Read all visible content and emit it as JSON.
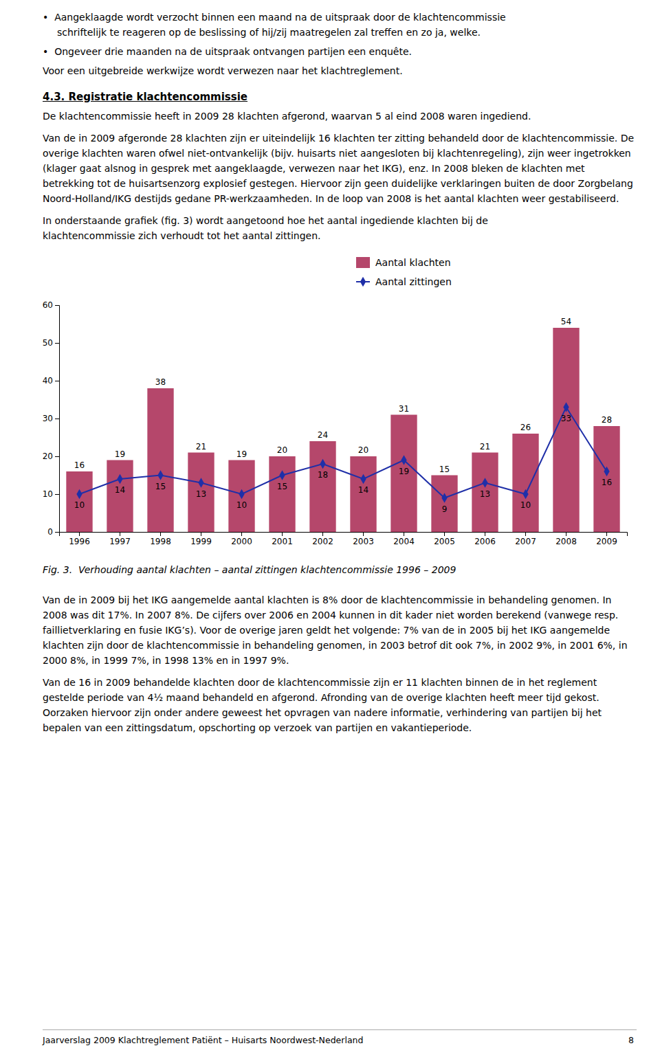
{
  "page": {
    "bullets": [
      [
        "•  Aangeklaagde wordt verzocht binnen een maand na de uitspraak door de klachtencommissie",
        "schriftelijk te reageren op de beslissing of hij/zij maatregelen zal treffen en zo ja, welke."
      ],
      [
        "•  Ongeveer drie maanden na de uitspraak ontvangen partijen een enquête."
      ]
    ],
    "text_before_heading": [
      [
        "Voor een uitgebreide werkwijze wordt verwezen naar het klachtreglement."
      ]
    ],
    "heading": "4.3. Registratie klachtencommissie",
    "text_after_heading": [
      [
        "De klachtencommissie heeft in 2009 28 klachten afgerond, waarvan 5 al eind 2008 waren ingediend."
      ],
      [
        "Van de in 2009 afgeronde 28 klachten zijn er uiteindelijk 16 klachten ter zitting behandeld door de klachtencommissie. De overige klachten waren ofwel niet-ontvankelijk (bijv. huisarts niet aangesloten bij klachtenregeling), zijn weer ingetrokken (klager gaat alsnog in gesprek met aangeklaagde, verwezen naar het IKG), enz. In 2008 bleken de klachten met betrekking tot de huisartsenzorg explosief gestegen. Hiervoor zijn geen duidelijke verklaringen buiten de door Zorgbelang Noord-Holland/IKG destijds gedane PR-werkzaamheden. In de loop van 2008 is het aantal klachten weer gestabiliseerd."
      ],
      [
        "In onderstaande grafiek (fig. 3) wordt aangetoond hoe het aantal ingediende klachten bij de",
        "klachtencommissie zich verhoudt tot het aantal zittingen."
      ]
    ],
    "text_after_chart": [
      [
        "Van de in 2009 bij het IKG aangemelde aantal klachten is 8% door de klachtencommissie in behandeling genomen. In 2008 was dit 17%. In 2007 8%. De cijfers over 2006 en 2004 kunnen in dit kader niet worden berekend (vanwege resp. faillietverklaring en fusie IKG’s). Voor de overige jaren geldt het volgende: 7% van de in 2005 bij het IKG aangemelde klachten zijn door de klachtencommissie in behandeling genomen, in 2003 betrof dit ook 7%, in 2002 9%, in 2001 6%, in 2000 8%, in 1999 7%, in 1998 13% en in 1997 9%."
      ],
      [
        "Van de 16 in 2009 behandelde klachten door de klachtencommissie zijn er 11 klachten binnen de in het reglement gestelde periode van 4½ maand behandeld en afgerond. Afronding van de overige klachten heeft meer tijd gekost. Oorzaken hiervoor zijn onder andere geweest het opvragen van nadere informatie, verhindering van partijen bij het bepalen van een zittingsdatum, opschorting op verzoek van partijen en vakantieperiode."
      ]
    ],
    "footer": "Jaarverslag 2009 Klachtreglement Patiënt – Huisarts Noordwest-Nederland",
    "page_number": 8
  },
  "chart_data": {
    "type": "bar",
    "title": "Fig. 3.  Verhouding aantal klachten – aantal zittingen klachtencommissie 1996 – 2009",
    "categories": [
      "1996",
      "1997",
      "1998",
      "1999",
      "2000",
      "2001",
      "2002",
      "2003",
      "2004",
      "2005",
      "2006",
      "2007",
      "2008",
      "2009"
    ],
    "series": [
      {
        "name": "Aantal klachten",
        "type": "bar",
        "color": "#b5476b",
        "values": [
          16,
          19,
          38,
          21,
          19,
          20,
          24,
          20,
          31,
          15,
          21,
          26,
          54,
          28
        ]
      },
      {
        "name": "Aantal zittingen",
        "type": "line",
        "color": "#1f2fa8",
        "marker": "diamond",
        "line_style": "solid",
        "values": [
          10,
          14,
          15,
          13,
          10,
          15,
          18,
          14,
          19,
          9,
          13,
          10,
          33,
          16
        ]
      }
    ],
    "ylim": [
      0,
      60
    ],
    "yticks": [
      0,
      10,
      20,
      30,
      40,
      50,
      60
    ],
    "grid": false,
    "legend": "top-right",
    "data_labels": true
  }
}
